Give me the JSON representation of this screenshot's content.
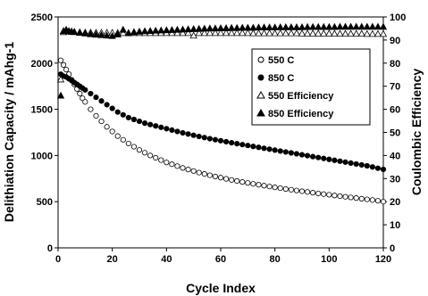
{
  "chart_data": {
    "type": "scatter",
    "xlabel": "Cycle Index",
    "ylabel": "Delithiation Capacity / mAhg-1",
    "y2label": "Coulombic Efficiency",
    "xlim": [
      0,
      120
    ],
    "ylim": [
      0,
      2500
    ],
    "y2lim": [
      0,
      100
    ],
    "x_ticks": [
      0,
      20,
      40,
      60,
      80,
      100,
      120
    ],
    "y_ticks": [
      0,
      500,
      1000,
      1500,
      2000,
      2500
    ],
    "y2_ticks": [
      0,
      10,
      20,
      30,
      40,
      50,
      60,
      70,
      80,
      90,
      100
    ],
    "grid": false,
    "legend_position": "upper-right",
    "series": [
      {
        "name": "550 C",
        "axis": "left",
        "marker": "open-circle",
        "x": [
          1,
          2,
          3,
          4,
          5,
          6,
          7,
          8,
          9,
          10,
          12,
          14,
          16,
          18,
          20,
          22,
          24,
          26,
          28,
          30,
          32,
          34,
          36,
          38,
          40,
          42,
          44,
          46,
          48,
          50,
          52,
          54,
          56,
          58,
          60,
          62,
          64,
          66,
          68,
          70,
          72,
          74,
          76,
          78,
          80,
          82,
          84,
          86,
          88,
          90,
          92,
          94,
          96,
          98,
          100,
          102,
          104,
          106,
          108,
          110,
          112,
          114,
          116,
          118,
          120
        ],
        "values": [
          2030,
          1980,
          1930,
          1880,
          1820,
          1770,
          1720,
          1670,
          1620,
          1580,
          1500,
          1430,
          1370,
          1310,
          1260,
          1210,
          1170,
          1130,
          1095,
          1060,
          1030,
          1000,
          975,
          950,
          925,
          905,
          885,
          865,
          848,
          832,
          815,
          800,
          786,
          772,
          760,
          747,
          735,
          724,
          713,
          703,
          693,
          683,
          673,
          664,
          655,
          646,
          637,
          629,
          621,
          613,
          605,
          597,
          589,
          582,
          575,
          567,
          560,
          553,
          546,
          539,
          532,
          525,
          518,
          510,
          500
        ]
      },
      {
        "name": "850 C",
        "axis": "left",
        "marker": "filled-circle",
        "x": [
          1,
          2,
          3,
          4,
          5,
          6,
          7,
          8,
          9,
          10,
          12,
          14,
          16,
          18,
          20,
          22,
          24,
          26,
          28,
          30,
          32,
          34,
          36,
          38,
          40,
          42,
          44,
          46,
          48,
          50,
          52,
          54,
          56,
          58,
          60,
          62,
          64,
          66,
          68,
          70,
          72,
          74,
          76,
          78,
          80,
          82,
          84,
          86,
          88,
          90,
          92,
          94,
          96,
          98,
          100,
          102,
          104,
          106,
          108,
          110,
          112,
          114,
          116,
          118,
          120
        ],
        "values": [
          1880,
          1860,
          1850,
          1830,
          1810,
          1790,
          1770,
          1750,
          1730,
          1710,
          1670,
          1630,
          1590,
          1550,
          1510,
          1470,
          1440,
          1410,
          1390,
          1370,
          1350,
          1335,
          1320,
          1305,
          1290,
          1275,
          1260,
          1245,
          1232,
          1219,
          1206,
          1194,
          1182,
          1171,
          1160,
          1149,
          1138,
          1128,
          1118,
          1108,
          1098,
          1088,
          1078,
          1068,
          1058,
          1048,
          1038,
          1028,
          1018,
          1008,
          998,
          988,
          978,
          968,
          958,
          948,
          938,
          928,
          918,
          908,
          898,
          888,
          876,
          862,
          850
        ]
      },
      {
        "name": "550 Efficiency",
        "axis": "right",
        "marker": "open-triangle",
        "x": [
          1,
          2,
          3,
          4,
          5,
          6,
          8,
          10,
          12,
          14,
          16,
          18,
          20,
          22,
          24,
          26,
          28,
          30,
          32,
          34,
          36,
          38,
          40,
          42,
          44,
          46,
          48,
          50,
          52,
          54,
          56,
          58,
          60,
          62,
          64,
          66,
          68,
          70,
          72,
          74,
          76,
          78,
          80,
          82,
          84,
          86,
          88,
          90,
          92,
          94,
          96,
          98,
          100,
          102,
          104,
          106,
          108,
          110,
          112,
          114,
          116,
          118,
          120
        ],
        "values": [
          73,
          93.5,
          94,
          93.8,
          93.6,
          93.5,
          93.4,
          93.3,
          93.3,
          93.2,
          93.2,
          93.2,
          93.2,
          93.1,
          93.1,
          93.1,
          93.1,
          93.1,
          93.1,
          93.1,
          93.1,
          93.1,
          93.1,
          93.1,
          93.1,
          93.1,
          93.1,
          92,
          93.1,
          93.1,
          93.1,
          93.1,
          93.1,
          93.1,
          93.1,
          93.1,
          93.1,
          93.1,
          93,
          93,
          93,
          93,
          93,
          93,
          93,
          93,
          93,
          92.9,
          92.9,
          92.9,
          92.9,
          92.9,
          92.9,
          92.8,
          92.8,
          92.8,
          92.8,
          92.8,
          92.8,
          92.7,
          92.7,
          92.7,
          92.7
        ]
      },
      {
        "name": "850 Efficiency",
        "axis": "right",
        "marker": "filled-triangle",
        "x": [
          1,
          2,
          3,
          4,
          5,
          6,
          8,
          10,
          12,
          14,
          16,
          18,
          20,
          22,
          24,
          26,
          28,
          30,
          32,
          34,
          36,
          38,
          40,
          42,
          44,
          46,
          48,
          50,
          52,
          54,
          56,
          58,
          60,
          62,
          64,
          66,
          68,
          70,
          72,
          74,
          76,
          78,
          80,
          82,
          84,
          86,
          88,
          90,
          92,
          94,
          96,
          98,
          100,
          102,
          104,
          106,
          108,
          110,
          112,
          114,
          116,
          118,
          120
        ],
        "values": [
          66,
          94,
          94.5,
          94,
          93.8,
          93.6,
          93.2,
          92.9,
          92.6,
          92.4,
          92.2,
          92,
          91.8,
          92.5,
          94.5,
          93,
          93.5,
          93.7,
          93.9,
          94,
          94.1,
          94.2,
          94.3,
          94.4,
          94.5,
          94.6,
          94.7,
          94.8,
          94.9,
          95,
          95.1,
          95.1,
          95.2,
          95.2,
          95.3,
          95.3,
          95.4,
          95.4,
          95.4,
          95.5,
          95.5,
          95.5,
          95.5,
          95.6,
          95.6,
          95.6,
          95.6,
          95.6,
          95.7,
          95.7,
          95.7,
          95.7,
          95.7,
          95.7,
          95.8,
          95.8,
          95.8,
          95.8,
          95.8,
          95.8,
          95.8,
          95.8,
          95.8
        ]
      }
    ]
  }
}
